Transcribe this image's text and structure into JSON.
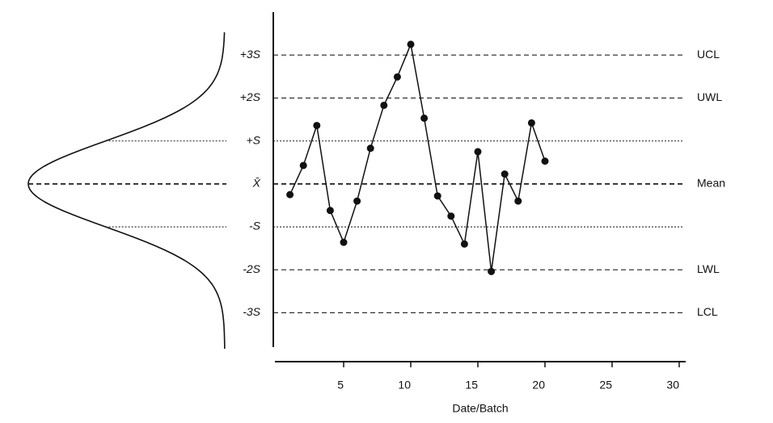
{
  "chart_data": {
    "type": "control",
    "x_label": "Date/Batch",
    "x": [
      1,
      2,
      3,
      4,
      5,
      6,
      7,
      8,
      9,
      10,
      11,
      12,
      13,
      14,
      15,
      16,
      17,
      18,
      19,
      20
    ],
    "values": [
      -0.25,
      0.43,
      1.36,
      -0.62,
      -1.36,
      -0.4,
      0.83,
      1.83,
      2.49,
      3.25,
      1.53,
      -0.28,
      -0.75,
      -1.4,
      0.75,
      -2.04,
      0.23,
      -0.4,
      1.42,
      0.53
    ],
    "color": "#111111",
    "xlim": [
      0,
      30
    ],
    "xticks": [
      5,
      10,
      15,
      20,
      25,
      30
    ],
    "ylim": [
      -3.8,
      4.0
    ],
    "yticks": [
      {
        "value": 3,
        "label": "+3S"
      },
      {
        "value": 2,
        "label": "+2S"
      },
      {
        "value": 1,
        "label": "+S"
      },
      {
        "value": 0,
        "label": "X̄"
      },
      {
        "value": -1,
        "label": "-S"
      },
      {
        "value": -2,
        "label": "-2S"
      },
      {
        "value": -3,
        "label": "-3S"
      }
    ],
    "limit_labels": [
      {
        "value": 3,
        "label": "UCL"
      },
      {
        "value": 2,
        "label": "UWL"
      },
      {
        "value": 0,
        "label": "Mean"
      },
      {
        "value": -2,
        "label": "LWL"
      },
      {
        "value": -3,
        "label": "LCL"
      }
    ],
    "grid": true
  }
}
